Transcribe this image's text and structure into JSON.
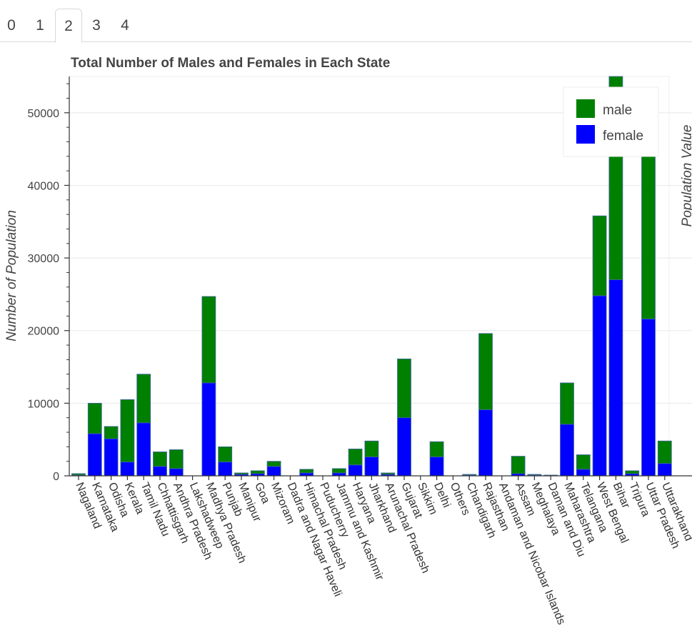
{
  "tabs": [
    {
      "label": "0",
      "active": false
    },
    {
      "label": "1",
      "active": false
    },
    {
      "label": "2",
      "active": true
    },
    {
      "label": "3",
      "active": false
    },
    {
      "label": "4",
      "active": false
    }
  ],
  "colors": {
    "male": "#008000",
    "female": "#0000ff",
    "grid": "#e8e8e8",
    "axis": "#333333"
  },
  "chart_data": {
    "type": "bar",
    "stacked": true,
    "title": "Total Number of Males and Females in Each State",
    "xlabel": "",
    "ylabel": "Number of Population",
    "ylabel_right": "Population Value",
    "ylim": [
      0,
      55000
    ],
    "yticks": [
      0,
      10000,
      20000,
      30000,
      40000,
      50000
    ],
    "grid": true,
    "legend_position": "top-right",
    "categories": [
      "Nagaland",
      "Karnataka",
      "Odisha",
      "Kerala",
      "Tamil Nadu",
      "Chhattisgarh",
      "Andhra Pradesh",
      "Lakshadweep",
      "Madhya Pradesh",
      "Punjab",
      "Manipur",
      "Goa",
      "Mizoram",
      "Dadra and Nagar Haveli",
      "Himachal Pradesh",
      "Puducherry",
      "Jammu and Kashmir",
      "Haryana",
      "Jharkhand",
      "Arunachal Pradesh",
      "Gujarat",
      "Sikkim",
      "Delhi",
      "Others",
      "Chandigarh",
      "Rajasthan",
      "Andaman and Nicobar Islands",
      "Assam",
      "Meghalaya",
      "Daman and Diu",
      "Maharashtra",
      "Telangana",
      "West Bengal",
      "Bihar",
      "Tripura",
      "Uttar Pradesh",
      "Uttarakhand"
    ],
    "series": [
      {
        "name": "female",
        "values": [
          100,
          5800,
          5100,
          1900,
          7300,
          1300,
          1000,
          0,
          12800,
          1900,
          200,
          300,
          1300,
          0,
          400,
          0,
          400,
          1500,
          2600,
          200,
          8000,
          0,
          2600,
          0,
          100,
          9100,
          0,
          300,
          100,
          0,
          7100,
          900,
          24800,
          27000,
          300,
          21600,
          1700
        ]
      },
      {
        "name": "male",
        "values": [
          200,
          4200,
          1700,
          8600,
          6700,
          2000,
          2600,
          0,
          11900,
          2100,
          200,
          400,
          700,
          0,
          500,
          0,
          600,
          2200,
          2200,
          200,
          8100,
          0,
          2100,
          0,
          100,
          10500,
          0,
          2400,
          100,
          100,
          5700,
          2000,
          11000,
          29000,
          400,
          26100,
          3100
        ]
      }
    ],
    "legend": [
      "male",
      "female"
    ]
  }
}
